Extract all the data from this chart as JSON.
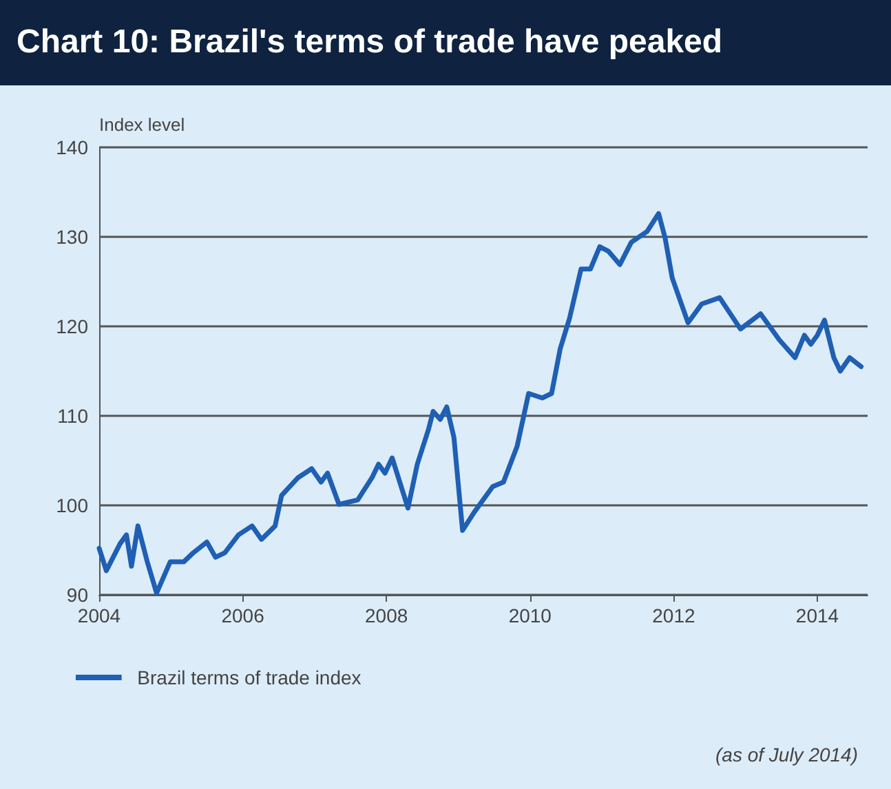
{
  "chart_data": {
    "type": "line",
    "title": "Chart 10: Brazil's terms of trade have peaked",
    "ylabel": "Index level",
    "annotations": [
      "(as of July 2014)"
    ],
    "xlim": [
      2004,
      2014.7
    ],
    "xticks": [
      2004,
      2006,
      2008,
      2010,
      2012,
      2014
    ],
    "ylim": [
      90,
      140
    ],
    "yticks": [
      90,
      100,
      110,
      120,
      130,
      140
    ],
    "grid": "y",
    "legend": "bottom",
    "marker": "none",
    "line_style": "solid",
    "series": [
      {
        "name": "Brazil terms of trade index",
        "color": "#1f5fb4",
        "x": [
          2004.0,
          2004.1,
          2004.29,
          2004.38,
          2004.45,
          2004.54,
          2004.67,
          2004.8,
          2004.99,
          2005.18,
          2005.31,
          2005.5,
          2005.62,
          2005.75,
          2005.94,
          2006.13,
          2006.26,
          2006.45,
          2006.54,
          2006.77,
          2006.96,
          2007.09,
          2007.18,
          2007.34,
          2007.6,
          2007.8,
          2007.89,
          2007.98,
          2008.08,
          2008.3,
          2008.43,
          2008.59,
          2008.65,
          2008.75,
          2008.84,
          2008.94,
          2009.06,
          2009.22,
          2009.48,
          2009.63,
          2009.82,
          2009.98,
          2010.17,
          2010.3,
          2010.42,
          2010.55,
          2010.71,
          2010.84,
          2010.97,
          2011.09,
          2011.25,
          2011.41,
          2011.63,
          2011.79,
          2011.88,
          2011.98,
          2012.2,
          2012.39,
          2012.64,
          2012.93,
          2013.21,
          2013.47,
          2013.69,
          2013.82,
          2013.91,
          2014.0,
          2014.1,
          2014.23,
          2014.32,
          2014.45,
          2014.61
        ],
        "values": [
          95.2,
          92.7,
          95.7,
          96.7,
          93.2,
          97.7,
          93.7,
          90.2,
          93.7,
          93.7,
          94.7,
          95.9,
          94.2,
          94.7,
          96.7,
          97.7,
          96.2,
          97.7,
          101.1,
          103.1,
          104.1,
          102.6,
          103.6,
          100.1,
          100.6,
          103.1,
          104.6,
          103.6,
          105.3,
          99.7,
          104.6,
          108.6,
          110.5,
          109.6,
          111.0,
          107.6,
          97.2,
          99.2,
          102.1,
          102.6,
          106.6,
          112.5,
          112.0,
          112.5,
          117.5,
          120.9,
          126.4,
          126.4,
          128.9,
          128.4,
          126.9,
          129.4,
          130.6,
          132.6,
          129.9,
          125.4,
          120.4,
          122.5,
          123.2,
          119.7,
          121.4,
          118.5,
          116.5,
          119.0,
          118.0,
          119.0,
          120.7,
          116.5,
          115.0,
          116.5,
          115.5
        ]
      }
    ]
  }
}
